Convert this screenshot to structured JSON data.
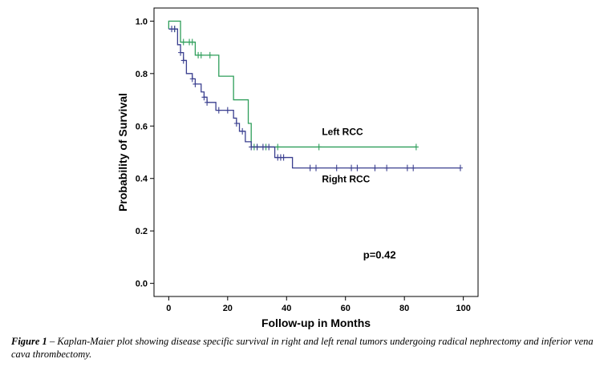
{
  "chart_data": {
    "type": "line",
    "subtype": "kaplan-meier",
    "xlabel": "Follow-up in Months",
    "ylabel": "Probability of Survival",
    "xlim": [
      -5,
      105
    ],
    "ylim": [
      -0.05,
      1.05
    ],
    "x_ticks": [
      0,
      20,
      40,
      60,
      80,
      100
    ],
    "y_ticks": [
      "0.0",
      "0.2",
      "0.4",
      "0.6",
      "0.8",
      "1.0"
    ],
    "grid": false,
    "series": [
      {
        "name": "Left RCC",
        "color": "#2e9e5a",
        "steps": [
          [
            0,
            0.97
          ],
          [
            0,
            1.0
          ],
          [
            4,
            0.92
          ],
          [
            9,
            0.87
          ],
          [
            17,
            0.79
          ],
          [
            22,
            0.7
          ],
          [
            27,
            0.61
          ],
          [
            28,
            0.52
          ],
          [
            84,
            0.52
          ]
        ],
        "censored": [
          [
            2,
            0.97
          ],
          [
            5,
            0.92
          ],
          [
            7,
            0.92
          ],
          [
            8,
            0.92
          ],
          [
            10,
            0.87
          ],
          [
            11,
            0.87
          ],
          [
            14,
            0.87
          ],
          [
            29,
            0.52
          ],
          [
            30,
            0.52
          ],
          [
            33,
            0.52
          ],
          [
            37,
            0.52
          ],
          [
            51,
            0.52
          ],
          [
            84,
            0.52
          ]
        ]
      },
      {
        "name": "Right RCC",
        "color": "#3a3f8f",
        "steps": [
          [
            0,
            0.97
          ],
          [
            3,
            0.91
          ],
          [
            4,
            0.88
          ],
          [
            5,
            0.85
          ],
          [
            6,
            0.8
          ],
          [
            8,
            0.78
          ],
          [
            9,
            0.76
          ],
          [
            11,
            0.73
          ],
          [
            12,
            0.71
          ],
          [
            13,
            0.69
          ],
          [
            16,
            0.66
          ],
          [
            22,
            0.63
          ],
          [
            23,
            0.61
          ],
          [
            24,
            0.58
          ],
          [
            26,
            0.54
          ],
          [
            28,
            0.52
          ],
          [
            36,
            0.48
          ],
          [
            42,
            0.44
          ],
          [
            99,
            0.44
          ]
        ],
        "censored": [
          [
            1,
            0.97
          ],
          [
            2,
            0.97
          ],
          [
            4,
            0.88
          ],
          [
            5,
            0.85
          ],
          [
            8,
            0.78
          ],
          [
            9,
            0.76
          ],
          [
            12,
            0.71
          ],
          [
            13,
            0.69
          ],
          [
            17,
            0.66
          ],
          [
            20,
            0.66
          ],
          [
            23,
            0.61
          ],
          [
            25,
            0.58
          ],
          [
            28,
            0.52
          ],
          [
            30,
            0.52
          ],
          [
            32,
            0.52
          ],
          [
            34,
            0.52
          ],
          [
            37,
            0.48
          ],
          [
            38,
            0.48
          ],
          [
            39,
            0.48
          ],
          [
            48,
            0.44
          ],
          [
            50,
            0.44
          ],
          [
            57,
            0.44
          ],
          [
            62,
            0.44
          ],
          [
            64,
            0.44
          ],
          [
            70,
            0.44
          ],
          [
            74,
            0.44
          ],
          [
            81,
            0.44
          ],
          [
            83,
            0.44
          ],
          [
            99,
            0.44
          ]
        ]
      }
    ],
    "series_labels": [
      {
        "text": "Left RCC",
        "x": 52,
        "y": 0.565
      },
      {
        "text": "Right RCC",
        "x": 52,
        "y": 0.385
      }
    ],
    "annotations": [
      {
        "text": "p=0.42",
        "x": 66,
        "y": 0.095
      }
    ]
  },
  "caption": {
    "label": "Figure 1",
    "text": " – Kaplan-Maier plot showing disease specific survival in right and left renal tumors undergoing radical nephrectomy and inferior vena cava thrombectomy."
  }
}
